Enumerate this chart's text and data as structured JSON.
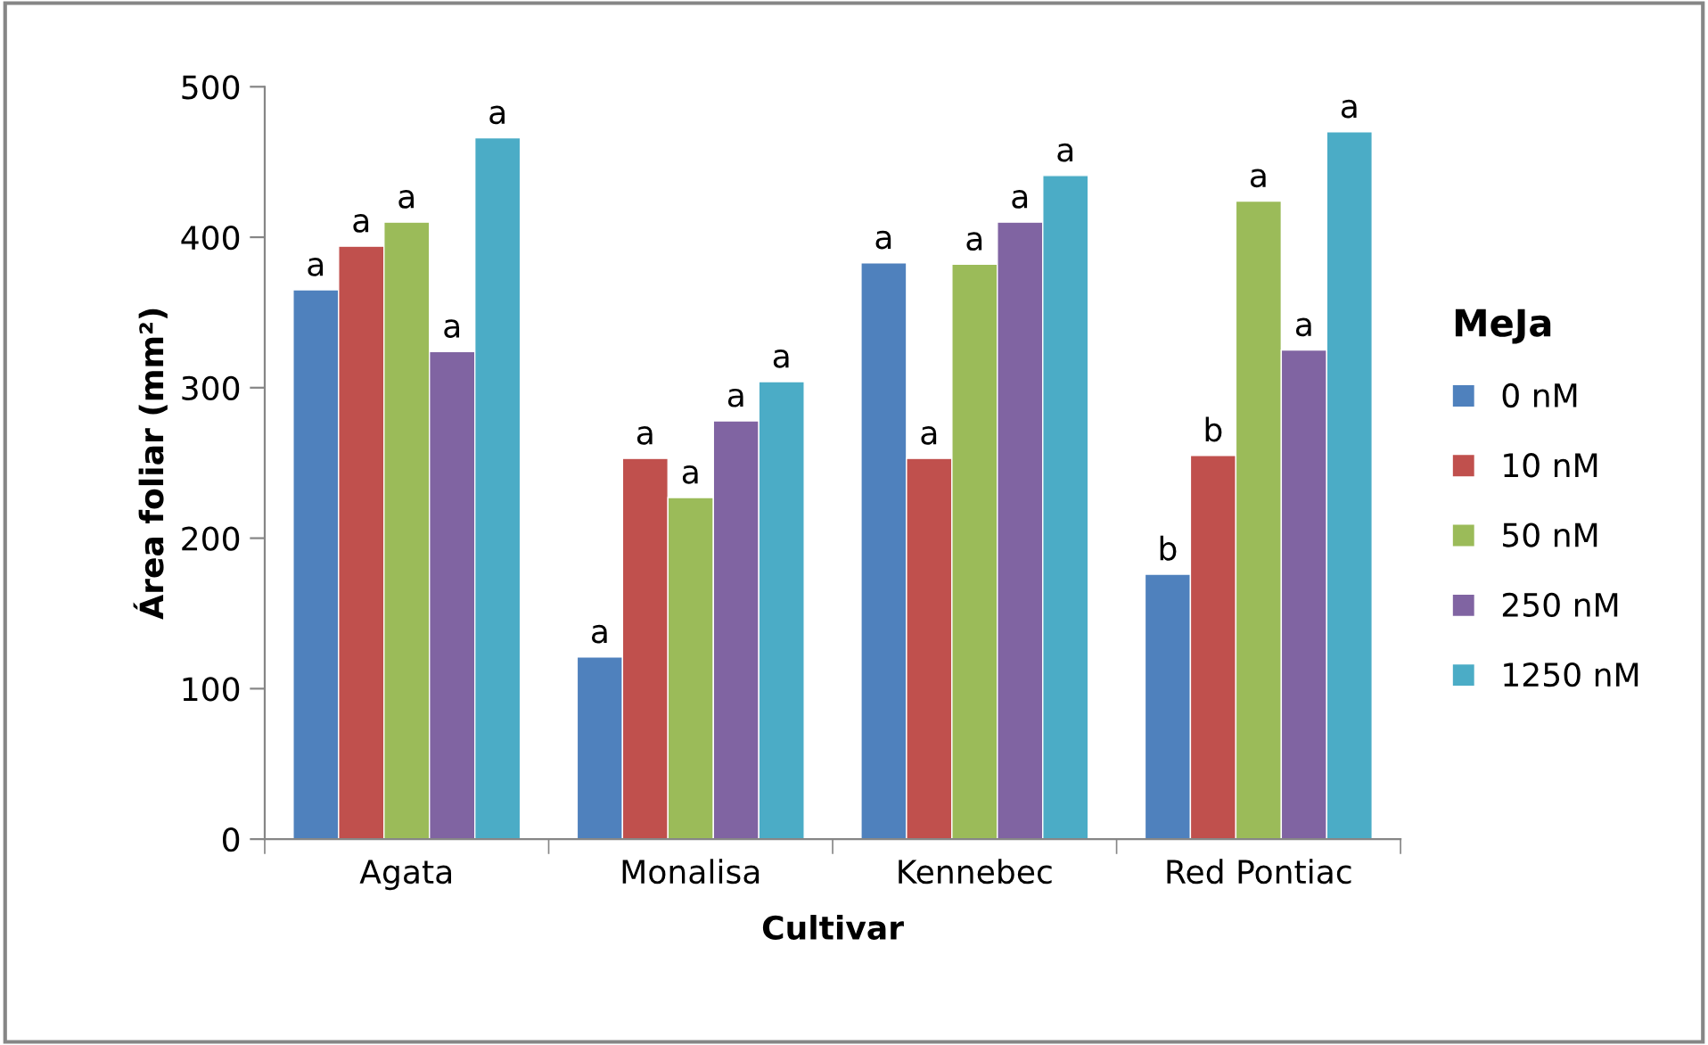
{
  "chart_data": {
    "type": "bar",
    "xlabel": "Cultivar",
    "ylabel": "Área foliar (mm²)",
    "legend_title": "MeJa",
    "categories": [
      "Agata",
      "Monalisa",
      "Kennebec",
      "Red Pontiac"
    ],
    "series": [
      {
        "name": "0 nM",
        "color": "#4f81bd",
        "values": [
          365,
          121,
          383,
          176
        ],
        "value_labels": [
          "a",
          "a",
          "a",
          "b"
        ]
      },
      {
        "name": "10 nM",
        "color": "#c0504d",
        "values": [
          394,
          253,
          253,
          255
        ],
        "value_labels": [
          "a",
          "a",
          "a",
          "b"
        ]
      },
      {
        "name": "50 nM",
        "color": "#9bbb59",
        "values": [
          410,
          227,
          382,
          424
        ],
        "value_labels": [
          "a",
          "a",
          "a",
          "a"
        ]
      },
      {
        "name": "250 nM",
        "color": "#8064a2",
        "values": [
          324,
          278,
          410,
          325
        ],
        "value_labels": [
          "a",
          "a",
          "a",
          "a"
        ]
      },
      {
        "name": "1250 nM",
        "color": "#4bacc6",
        "values": [
          466,
          304,
          441,
          470
        ],
        "value_labels": [
          "a",
          "a",
          "a",
          "a"
        ]
      }
    ],
    "ylim": [
      0,
      500
    ],
    "yticks": [
      0,
      100,
      200,
      300,
      400,
      500
    ],
    "grid": false,
    "legend": "right"
  }
}
